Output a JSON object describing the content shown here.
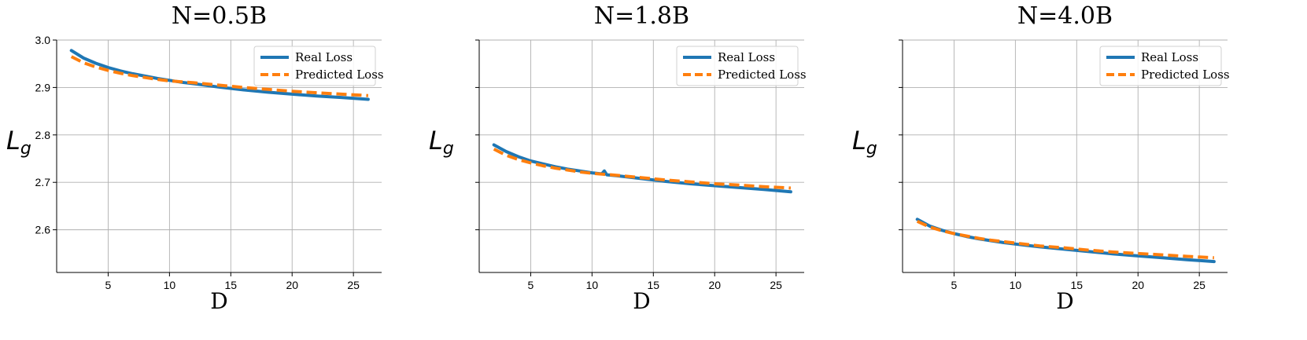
{
  "colors": {
    "real": "#1f77b4",
    "predicted": "#ff7f0e",
    "grid": "#b0b0b0"
  },
  "legend": {
    "real": "Real Loss",
    "predicted": "Predicted Loss",
    "position": "top-right"
  },
  "chart_data": [
    {
      "type": "line",
      "title": "N=0.5B",
      "xlabel": "D",
      "ylabel": "L",
      "ylabel_sub": "g",
      "xlim": [
        0.8,
        27.3
      ],
      "ylim": [
        2.51,
        3.0
      ],
      "xticks": [
        5,
        10,
        15,
        20,
        25
      ],
      "yticks": [
        2.6,
        2.7,
        2.8,
        2.9,
        3.0
      ],
      "ytick_labels": [
        "2.6",
        "2.7",
        "2.8",
        "2.9",
        "3.0"
      ],
      "grid": true,
      "series": [
        {
          "name": "Real Loss",
          "style": "solid",
          "x": [
            2,
            3,
            4,
            5,
            6,
            7,
            8,
            9,
            10,
            11,
            12,
            14,
            16,
            18,
            20,
            22,
            24,
            26.2
          ],
          "y": [
            2.978,
            2.962,
            2.951,
            2.942,
            2.935,
            2.929,
            2.924,
            2.919,
            2.915,
            2.911,
            2.908,
            2.901,
            2.895,
            2.89,
            2.886,
            2.882,
            2.879,
            2.875
          ]
        },
        {
          "name": "Predicted Loss",
          "style": "dashed",
          "x": [
            2,
            3,
            4,
            5,
            6,
            7,
            8,
            9,
            10,
            11,
            12,
            14,
            16,
            18,
            20,
            22,
            24,
            26.2
          ],
          "y": [
            2.965,
            2.952,
            2.943,
            2.936,
            2.93,
            2.925,
            2.921,
            2.917,
            2.914,
            2.912,
            2.91,
            2.905,
            2.9,
            2.896,
            2.892,
            2.889,
            2.886,
            2.883
          ]
        }
      ]
    },
    {
      "type": "line",
      "title": "N=1.8B",
      "xlabel": "D",
      "ylabel": "L",
      "ylabel_sub": "g",
      "xlim": [
        0.8,
        27.3
      ],
      "ylim": [
        2.51,
        3.0
      ],
      "xticks": [
        5,
        10,
        15,
        20,
        25
      ],
      "yticks": [
        2.6,
        2.7,
        2.8,
        2.9,
        3.0
      ],
      "ytick_labels": [
        "",
        "",
        "",
        "",
        ""
      ],
      "grid": true,
      "series": [
        {
          "name": "Real Loss",
          "style": "solid",
          "x": [
            2,
            3,
            4,
            5,
            6,
            7,
            8,
            9,
            10,
            10.8,
            11,
            11.2,
            12,
            14,
            16,
            18,
            20,
            22,
            24,
            26.2
          ],
          "y": [
            2.779,
            2.765,
            2.754,
            2.745,
            2.739,
            2.733,
            2.728,
            2.724,
            2.72,
            2.718,
            2.724,
            2.716,
            2.714,
            2.708,
            2.702,
            2.697,
            2.693,
            2.689,
            2.685,
            2.68
          ]
        },
        {
          "name": "Predicted Loss",
          "style": "dashed",
          "x": [
            2,
            3,
            4,
            5,
            6,
            7,
            8,
            9,
            10,
            11,
            12,
            14,
            16,
            18,
            20,
            22,
            24,
            26.2
          ],
          "y": [
            2.77,
            2.757,
            2.748,
            2.741,
            2.735,
            2.73,
            2.726,
            2.722,
            2.719,
            2.717,
            2.715,
            2.71,
            2.705,
            2.701,
            2.697,
            2.694,
            2.691,
            2.688
          ]
        }
      ]
    },
    {
      "type": "line",
      "title": "N=4.0B",
      "xlabel": "D",
      "ylabel": "L",
      "ylabel_sub": "g",
      "xlim": [
        0.8,
        27.3
      ],
      "ylim": [
        2.51,
        3.0
      ],
      "xticks": [
        5,
        10,
        15,
        20,
        25
      ],
      "yticks": [
        2.6,
        2.7,
        2.8,
        2.9,
        3.0
      ],
      "ytick_labels": [
        "",
        "",
        "",
        "",
        ""
      ],
      "grid": true,
      "series": [
        {
          "name": "Real Loss",
          "style": "solid",
          "x": [
            2,
            3,
            4,
            5,
            6,
            7,
            8,
            9,
            10,
            11,
            12,
            14,
            16,
            18,
            20,
            22,
            24,
            26.2
          ],
          "y": [
            2.622,
            2.608,
            2.599,
            2.592,
            2.586,
            2.581,
            2.577,
            2.573,
            2.57,
            2.567,
            2.564,
            2.559,
            2.554,
            2.549,
            2.545,
            2.541,
            2.537,
            2.533
          ]
        },
        {
          "name": "Predicted Loss",
          "style": "dashed",
          "x": [
            2,
            3,
            4,
            5,
            6,
            7,
            8,
            9,
            10,
            11,
            12,
            14,
            16,
            18,
            20,
            22,
            24,
            26.2
          ],
          "y": [
            2.618,
            2.606,
            2.598,
            2.592,
            2.587,
            2.582,
            2.578,
            2.575,
            2.572,
            2.569,
            2.566,
            2.562,
            2.557,
            2.553,
            2.55,
            2.547,
            2.544,
            2.541
          ]
        }
      ]
    }
  ]
}
